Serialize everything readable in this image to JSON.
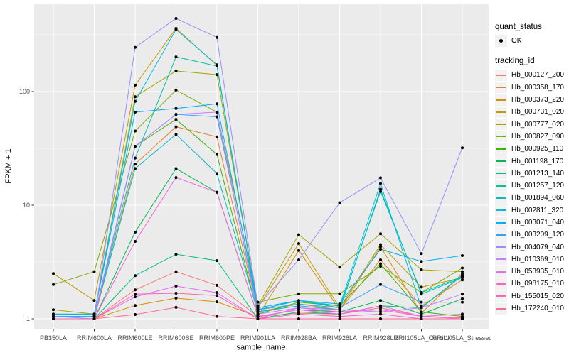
{
  "axes": {
    "x_title": "sample_name",
    "y_title": "FPKM + 1"
  },
  "legend": {
    "quant_status_title": "quant_status",
    "quant_status_items": [
      {
        "label": "OK"
      }
    ],
    "tracking_title": "tracking_id"
  },
  "colors": {
    "panel_background": "#EBEBEB",
    "grid": "#FFFFFF",
    "tick_label": "#4d4d4d",
    "tick_mark": "#333333",
    "point": "#000000",
    "legend_key_background": "#F2F2F2"
  },
  "chart_data": {
    "type": "line",
    "title": "",
    "xlabel": "sample_name",
    "ylabel": "FPKM + 1",
    "y_scale": "log10",
    "ylim": [
      0.82,
      590
    ],
    "y_ticks": [
      1,
      10,
      100
    ],
    "y_tick_labels": [
      "1",
      "10",
      "100"
    ],
    "y_minor_ticks": [
      3.1623,
      31.623,
      316.23
    ],
    "grid": true,
    "legend_position": "right",
    "point_marker": "black-dot",
    "categories": [
      "PB350LA",
      "RRIM600LA",
      "RRIM600LE",
      "RRIM600SE",
      "RRIM600PE",
      "RRIM901LA",
      "RRIM928BA",
      "RRIM928LA",
      "RRIM928LE",
      "RRII105LA_Control",
      "RRII105LA_Stressed"
    ],
    "series": [
      {
        "name": "Hb_000127_200",
        "color": "#F8766D",
        "values": [
          1.0,
          1.0,
          1.8,
          2.6,
          1.97,
          1.05,
          1.12,
          1.1,
          1.25,
          1.05,
          1.02
        ]
      },
      {
        "name": "Hb_000358_170",
        "color": "#EA8331",
        "values": [
          1.0,
          1.0,
          23,
          49,
          40,
          1.15,
          1.35,
          1.2,
          3.3,
          1.3,
          2.2
        ]
      },
      {
        "name": "Hb_000373_220",
        "color": "#D89000",
        "values": [
          1.0,
          1.0,
          1.31,
          1.52,
          1.41,
          1.05,
          4.0,
          1.2,
          4.3,
          1.12,
          2.5
        ]
      },
      {
        "name": "Hb_000731_020",
        "color": "#C09B00",
        "values": [
          2.5,
          1.45,
          114,
          360,
          170,
          1.25,
          4.6,
          1.25,
          4.5,
          1.9,
          2.3
        ]
      },
      {
        "name": "Hb_000777_020",
        "color": "#A3A500",
        "values": [
          1.2,
          1.1,
          90,
          152,
          141,
          1.3,
          5.5,
          2.85,
          5.6,
          2.7,
          2.6
        ]
      },
      {
        "name": "Hb_000827_090",
        "color": "#7CAE00",
        "values": [
          2.0,
          2.6,
          45,
          103,
          66,
          1.4,
          1.66,
          1.66,
          2.9,
          1.7,
          2.8
        ]
      },
      {
        "name": "Hb_000925_110",
        "color": "#39B600",
        "values": [
          1.0,
          1.0,
          33,
          57,
          28,
          1.1,
          1.4,
          1.3,
          3.05,
          1.15,
          1.05
        ]
      },
      {
        "name": "Hb_001198_170",
        "color": "#00BB4E",
        "values": [
          1.0,
          1.0,
          5.8,
          21,
          13,
          1.05,
          1.2,
          1.15,
          1.45,
          1.1,
          1.5
        ]
      },
      {
        "name": "Hb_001213_140",
        "color": "#00BF7D",
        "values": [
          1.0,
          1.0,
          2.4,
          3.7,
          3.25,
          1.0,
          1.15,
          1.1,
          1.3,
          1.25,
          2.4
        ]
      },
      {
        "name": "Hb_001257_120",
        "color": "#00C1A3",
        "values": [
          1.05,
          1.05,
          26,
          202,
          168,
          1.2,
          1.45,
          1.25,
          13.2,
          1.7,
          2.35
        ]
      },
      {
        "name": "Hb_001894_060",
        "color": "#00BFC4",
        "values": [
          1.05,
          1.05,
          21,
          42,
          19,
          1.15,
          1.3,
          1.2,
          13.8,
          1.65,
          2.3
        ]
      },
      {
        "name": "Hb_002811_320",
        "color": "#00BAE0",
        "values": [
          1.1,
          1.1,
          82,
          352,
          172,
          1.2,
          1.45,
          1.3,
          15.5,
          1.25,
          2.42
        ]
      },
      {
        "name": "Hb_003071_040",
        "color": "#00B0F6",
        "values": [
          1.1,
          1.1,
          66,
          71,
          78,
          1.25,
          1.45,
          1.35,
          4.1,
          3.2,
          3.6
        ]
      },
      {
        "name": "Hb_003209_120",
        "color": "#35A2FF",
        "values": [
          1.05,
          1.05,
          33,
          63,
          60,
          1.2,
          1.35,
          1.25,
          2.0,
          1.4,
          1.4
        ]
      },
      {
        "name": "Hb_004079_040",
        "color": "#9590FF",
        "values": [
          1.05,
          1.0,
          245,
          440,
          300,
          1.3,
          3.3,
          10.5,
          17.4,
          3.75,
          32
        ]
      },
      {
        "name": "Hb_010369_010",
        "color": "#C77CFF",
        "values": [
          1.0,
          1.0,
          33,
          63,
          66,
          1.1,
          1.25,
          1.2,
          1.15,
          1.25,
          1.65
        ]
      },
      {
        "name": "Hb_053935_010",
        "color": "#E76BF3",
        "values": [
          1.0,
          1.0,
          1.56,
          1.94,
          1.7,
          1.0,
          1.25,
          1.15,
          1.2,
          1.05,
          1.1
        ]
      },
      {
        "name": "Hb_098175_010",
        "color": "#FA62DB",
        "values": [
          1.0,
          1.0,
          4.8,
          17.5,
          13,
          1.05,
          1.2,
          1.1,
          1.3,
          1.05,
          1.0
        ]
      },
      {
        "name": "Hb_155015_020",
        "color": "#FF62BC",
        "values": [
          1.0,
          1.0,
          1.65,
          1.68,
          1.6,
          1.0,
          1.1,
          1.05,
          1.1,
          1.0,
          1.0
        ]
      },
      {
        "name": "Hb_172240_010",
        "color": "#FF6A98",
        "values": [
          1.0,
          1.0,
          1.09,
          1.26,
          1.05,
          1.0,
          1.0,
          1.0,
          1.0,
          1.0,
          1.0
        ]
      }
    ]
  }
}
